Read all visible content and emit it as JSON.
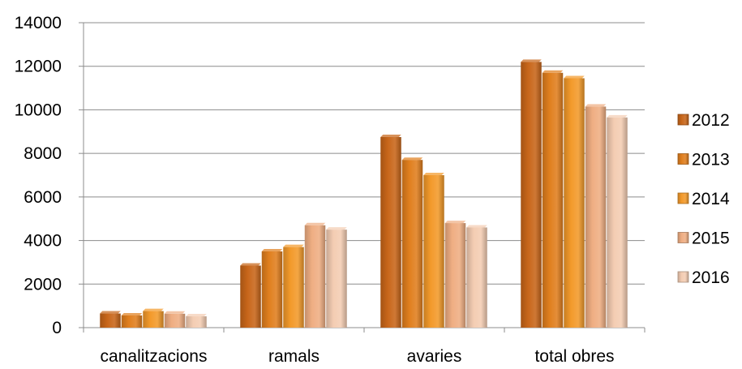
{
  "chart_data": {
    "type": "bar",
    "title": "",
    "xlabel": "",
    "ylabel": "",
    "categories": [
      "canalitzacions",
      "ramals",
      "avaries",
      "total obres"
    ],
    "ylim": [
      0,
      14000
    ],
    "yticks": [
      0,
      2000,
      4000,
      6000,
      8000,
      10000,
      12000,
      14000
    ],
    "grid": true,
    "legend_position": "right",
    "series": [
      {
        "name": "2012",
        "values": [
          650,
          2850,
          8750,
          12200
        ],
        "color": "#C8661A"
      },
      {
        "name": "2013",
        "values": [
          560,
          3500,
          7700,
          11700
        ],
        "color": "#E07F1E"
      },
      {
        "name": "2014",
        "values": [
          760,
          3700,
          7000,
          11450
        ],
        "color": "#F39A2B"
      },
      {
        "name": "2015",
        "values": [
          640,
          4700,
          4800,
          10150
        ],
        "color": "#EFAE83"
      },
      {
        "name": "2016",
        "values": [
          520,
          4500,
          4600,
          9650
        ],
        "color": "#F4CDB3"
      }
    ]
  }
}
